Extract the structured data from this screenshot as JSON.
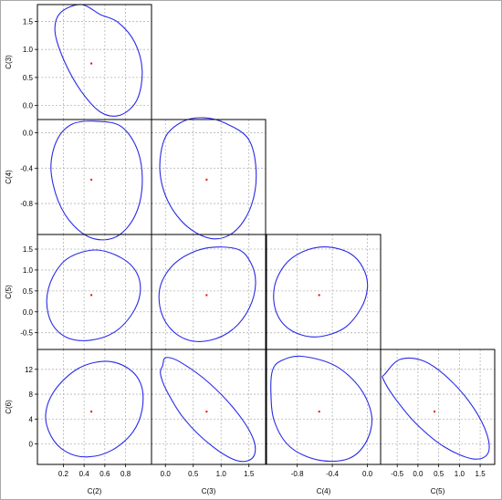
{
  "chart_data": {
    "type": "scatter",
    "title": "",
    "grid": true,
    "colors": {
      "ellipse": "#2a2ae8",
      "point": "#ff0000",
      "grid": "#b5b5b5",
      "frame": "#000000"
    },
    "variables": [
      {
        "name": "C(2)",
        "range": [
          -0.05,
          1.05
        ],
        "ticks": [
          0.2,
          0.4,
          0.6,
          0.8
        ],
        "tick_labels": [
          "0.2",
          "0.4",
          "0.6",
          "0.8"
        ]
      },
      {
        "name": "C(3)",
        "range": [
          -0.25,
          1.8
        ],
        "ticks": [
          0.0,
          0.5,
          1.0,
          1.5
        ],
        "tick_labels": [
          "0.0",
          "0.5",
          "1.0",
          "1.5"
        ]
      },
      {
        "name": "C(4)",
        "range": [
          -1.15,
          0.15
        ],
        "ticks": [
          -0.8,
          -0.4,
          0.0
        ],
        "tick_labels": [
          "-0.8",
          "-0.4",
          "0.0"
        ]
      },
      {
        "name": "C(5)",
        "range": [
          -0.9,
          1.85
        ],
        "ticks": [
          -0.5,
          0.0,
          0.5,
          1.0,
          1.5
        ],
        "tick_labels": [
          "-0.5",
          "0.0",
          "0.5",
          "1.0",
          "1.5"
        ]
      },
      {
        "name": "C(6)",
        "range": [
          -3.3,
          15.2
        ],
        "ticks": [
          0,
          4,
          8,
          12
        ],
        "tick_labels": [
          "0",
          "4",
          "8",
          "12"
        ]
      }
    ],
    "panels": [
      {
        "x": "C(2)",
        "y": "C(3)",
        "center": [
          0.47,
          0.75
        ],
        "ellipse": [
          [
            0.56,
            1.62
          ],
          [
            0.73,
            1.48
          ],
          [
            0.89,
            1.12
          ],
          [
            0.96,
            0.62
          ],
          [
            0.91,
            0.1
          ],
          [
            0.75,
            -0.17
          ],
          [
            0.56,
            -0.12
          ],
          [
            0.37,
            0.26
          ],
          [
            0.21,
            0.79
          ],
          [
            0.12,
            1.31
          ],
          [
            0.17,
            1.65
          ],
          [
            0.37,
            1.8
          ]
        ]
      },
      {
        "x": "C(2)",
        "y": "C(4)",
        "center": [
          0.47,
          -0.53
        ],
        "ellipse": [
          [
            0.52,
            0.13
          ],
          [
            0.76,
            0.07
          ],
          [
            0.92,
            -0.21
          ],
          [
            0.96,
            -0.59
          ],
          [
            0.89,
            -0.94
          ],
          [
            0.72,
            -1.17
          ],
          [
            0.5,
            -1.2
          ],
          [
            0.3,
            -1.05
          ],
          [
            0.15,
            -0.77
          ],
          [
            0.08,
            -0.4
          ],
          [
            0.14,
            -0.08
          ],
          [
            0.29,
            0.1
          ]
        ]
      },
      {
        "x": "C(3)",
        "y": "C(4)",
        "center": [
          0.74,
          -0.53
        ],
        "ellipse": [
          [
            1.07,
            0.11
          ],
          [
            1.49,
            -0.07
          ],
          [
            1.63,
            -0.43
          ],
          [
            1.55,
            -0.81
          ],
          [
            1.27,
            -1.1
          ],
          [
            0.87,
            -1.2
          ],
          [
            0.41,
            -1.07
          ],
          [
            0.05,
            -0.78
          ],
          [
            -0.1,
            -0.41
          ],
          [
            0.0,
            -0.05
          ],
          [
            0.32,
            0.13
          ],
          [
            0.69,
            0.17
          ]
        ]
      },
      {
        "x": "C(2)",
        "y": "C(5)",
        "center": [
          0.47,
          0.4
        ],
        "ellipse": [
          [
            0.51,
            1.48
          ],
          [
            0.76,
            1.29
          ],
          [
            0.91,
            0.92
          ],
          [
            0.94,
            0.44
          ],
          [
            0.86,
            -0.06
          ],
          [
            0.69,
            -0.49
          ],
          [
            0.46,
            -0.68
          ],
          [
            0.24,
            -0.62
          ],
          [
            0.09,
            -0.28
          ],
          [
            0.04,
            0.27
          ],
          [
            0.1,
            0.84
          ],
          [
            0.25,
            1.29
          ]
        ]
      },
      {
        "x": "C(3)",
        "y": "C(5)",
        "center": [
          0.74,
          0.4
        ],
        "ellipse": [
          [
            1.29,
            1.5
          ],
          [
            1.54,
            1.16
          ],
          [
            1.62,
            0.67
          ],
          [
            1.51,
            0.1
          ],
          [
            1.22,
            -0.41
          ],
          [
            0.81,
            -0.68
          ],
          [
            0.4,
            -0.67
          ],
          [
            0.07,
            -0.37
          ],
          [
            -0.1,
            0.13
          ],
          [
            -0.07,
            0.7
          ],
          [
            0.22,
            1.22
          ],
          [
            0.72,
            1.52
          ]
        ]
      },
      {
        "x": "C(4)",
        "y": "C(5)",
        "center": [
          -0.55,
          0.4
        ],
        "ellipse": [
          [
            -0.45,
            1.55
          ],
          [
            -0.2,
            1.4
          ],
          [
            -0.05,
            1.05
          ],
          [
            0.0,
            0.58
          ],
          [
            -0.08,
            0.06
          ],
          [
            -0.28,
            -0.41
          ],
          [
            -0.6,
            -0.6
          ],
          [
            -0.88,
            -0.43
          ],
          [
            -1.04,
            0.0
          ],
          [
            -1.06,
            0.6
          ],
          [
            -0.93,
            1.15
          ],
          [
            -0.7,
            1.47
          ]
        ]
      },
      {
        "x": "C(2)",
        "y": "C(6)",
        "center": [
          0.47,
          5.2
        ],
        "ellipse": [
          [
            0.6,
            13.3
          ],
          [
            0.82,
            12.2
          ],
          [
            0.95,
            9.5
          ],
          [
            0.96,
            5.6
          ],
          [
            0.87,
            1.9
          ],
          [
            0.67,
            -1.0
          ],
          [
            0.43,
            -2.1
          ],
          [
            0.22,
            -1.2
          ],
          [
            0.08,
            1.3
          ],
          [
            0.03,
            4.8
          ],
          [
            0.12,
            8.7
          ],
          [
            0.34,
            12.1
          ]
        ]
      },
      {
        "x": "C(3)",
        "y": "C(6)",
        "center": [
          0.74,
          5.2
        ],
        "ellipse": [
          [
            -0.05,
            12.6
          ],
          [
            0.01,
            13.9
          ],
          [
            0.28,
            13.1
          ],
          [
            0.8,
            9.7
          ],
          [
            1.31,
            4.8
          ],
          [
            1.59,
            0.5
          ],
          [
            1.57,
            -2.2
          ],
          [
            1.29,
            -2.7
          ],
          [
            0.83,
            -0.3
          ],
          [
            0.34,
            4.0
          ],
          [
            0.02,
            8.6
          ],
          [
            -0.09,
            11.3
          ]
        ]
      },
      {
        "x": "C(4)",
        "y": "C(6)",
        "center": [
          -0.55,
          5.2
        ],
        "ellipse": [
          [
            -0.98,
            13.4
          ],
          [
            -0.75,
            14.1
          ],
          [
            -0.37,
            12.6
          ],
          [
            -0.08,
            8.9
          ],
          [
            0.05,
            4.3
          ],
          [
            -0.02,
            0.2
          ],
          [
            -0.22,
            -2.4
          ],
          [
            -0.56,
            -2.6
          ],
          [
            -0.88,
            -0.5
          ],
          [
            -1.06,
            3.6
          ],
          [
            -1.1,
            8.4
          ],
          [
            -1.08,
            11.9
          ]
        ]
      },
      {
        "x": "C(5)",
        "y": "C(6)",
        "center": [
          0.4,
          5.2
        ],
        "ellipse": [
          [
            -0.8,
            11.2
          ],
          [
            -0.43,
            13.6
          ],
          [
            0.15,
            13.3
          ],
          [
            0.79,
            10.2
          ],
          [
            1.35,
            5.7
          ],
          [
            1.67,
            1.4
          ],
          [
            1.68,
            -1.6
          ],
          [
            1.32,
            -2.4
          ],
          [
            0.64,
            -0.5
          ],
          [
            -0.05,
            3.3
          ],
          [
            -0.58,
            7.6
          ],
          [
            -0.84,
            10.5
          ]
        ]
      }
    ]
  }
}
